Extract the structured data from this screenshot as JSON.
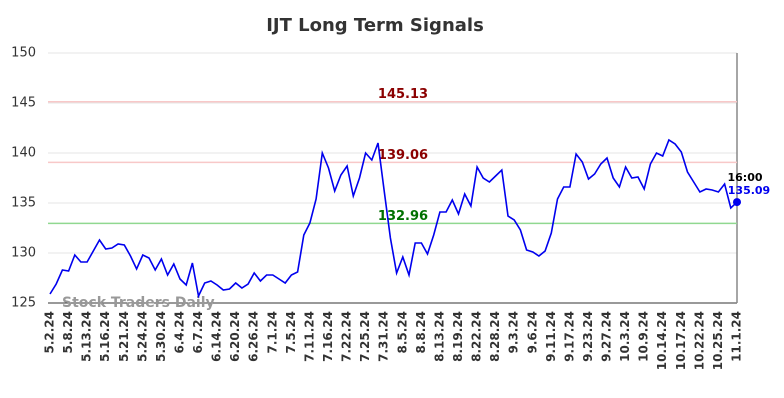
{
  "chart_data": {
    "type": "line",
    "title": "IJT Long Term Signals",
    "watermark": "Stock Traders Daily",
    "last_time": "16:00",
    "color": "#0000ee",
    "categories": [
      "5.2.24",
      null,
      null,
      "5.8.24",
      null,
      null,
      "5.13.24",
      null,
      null,
      "5.16.24",
      null,
      null,
      "5.21.24",
      null,
      null,
      "5.24.24",
      null,
      null,
      "5.30.24",
      null,
      null,
      "6.4.24",
      null,
      null,
      "6.7.24",
      null,
      null,
      "6.14.24",
      null,
      null,
      "6.20.24",
      null,
      null,
      "6.26.24",
      null,
      null,
      "7.1.24",
      null,
      null,
      "7.5.24",
      null,
      null,
      "7.11.24",
      null,
      null,
      "7.16.24",
      null,
      null,
      "7.22.24",
      null,
      null,
      "7.25.24",
      null,
      null,
      "7.31.24",
      null,
      null,
      "8.5.24",
      null,
      null,
      "8.8.24",
      null,
      null,
      "8.13.24",
      null,
      null,
      "8.19.24",
      null,
      null,
      "8.22.24",
      null,
      null,
      "8.28.24",
      null,
      null,
      "9.3.24",
      null,
      null,
      "9.6.24",
      null,
      null,
      "9.11.24",
      null,
      null,
      "9.17.24",
      null,
      null,
      "9.23.24",
      null,
      null,
      "9.27.24",
      null,
      null,
      "10.3.24",
      null,
      null,
      "10.9.24",
      null,
      null,
      "10.14.24",
      null,
      null,
      "10.17.24",
      null,
      null,
      "10.22.24",
      null,
      null,
      "10.25.24",
      null,
      null,
      "11.1.24"
    ],
    "values": [
      125.9,
      126.9,
      128.3,
      128.2,
      129.8,
      129.1,
      129.1,
      130.2,
      131.3,
      130.4,
      130.5,
      130.9,
      130.8,
      129.7,
      128.4,
      129.8,
      129.5,
      128.3,
      129.4,
      127.8,
      128.9,
      127.4,
      126.8,
      129.0,
      125.7,
      127.0,
      127.2,
      126.8,
      126.3,
      126.4,
      127.0,
      126.5,
      126.9,
      128.0,
      127.2,
      127.8,
      127.8,
      127.4,
      127.0,
      127.8,
      128.1,
      131.8,
      133.0,
      135.4,
      140.0,
      138.5,
      136.2,
      137.8,
      138.7,
      135.7,
      137.5,
      140.0,
      139.3,
      141.0,
      136.2,
      131.5,
      128.0,
      129.6,
      127.8,
      131.0,
      131.0,
      129.9,
      131.8,
      134.1,
      134.1,
      135.3,
      133.9,
      135.9,
      134.7,
      138.6,
      137.5,
      137.1,
      137.7,
      138.3,
      133.7,
      133.3,
      132.3,
      130.3,
      130.1,
      129.7,
      130.2,
      132.0,
      135.4,
      136.6,
      136.6,
      139.9,
      139.1,
      137.4,
      137.9,
      138.9,
      139.5,
      137.5,
      136.6,
      138.6,
      137.5,
      137.6,
      136.4,
      138.9,
      140.0,
      139.7,
      141.3,
      140.9,
      140.1,
      138.1,
      137.1,
      136.1,
      136.4,
      136.3,
      136.1,
      136.9,
      134.5,
      135.09
    ],
    "hlines": [
      {
        "value": 145.13,
        "color": "#f8c8c8",
        "text_color": "#8b0000"
      },
      {
        "value": 139.06,
        "color": "#f8c8c8",
        "text_color": "#8b0000"
      },
      {
        "value": 132.96,
        "color": "#90d890",
        "text_color": "#007000"
      }
    ],
    "ylim": [
      125,
      150
    ],
    "yticks": [
      125,
      130,
      135,
      140,
      145,
      150
    ],
    "grid": true
  }
}
